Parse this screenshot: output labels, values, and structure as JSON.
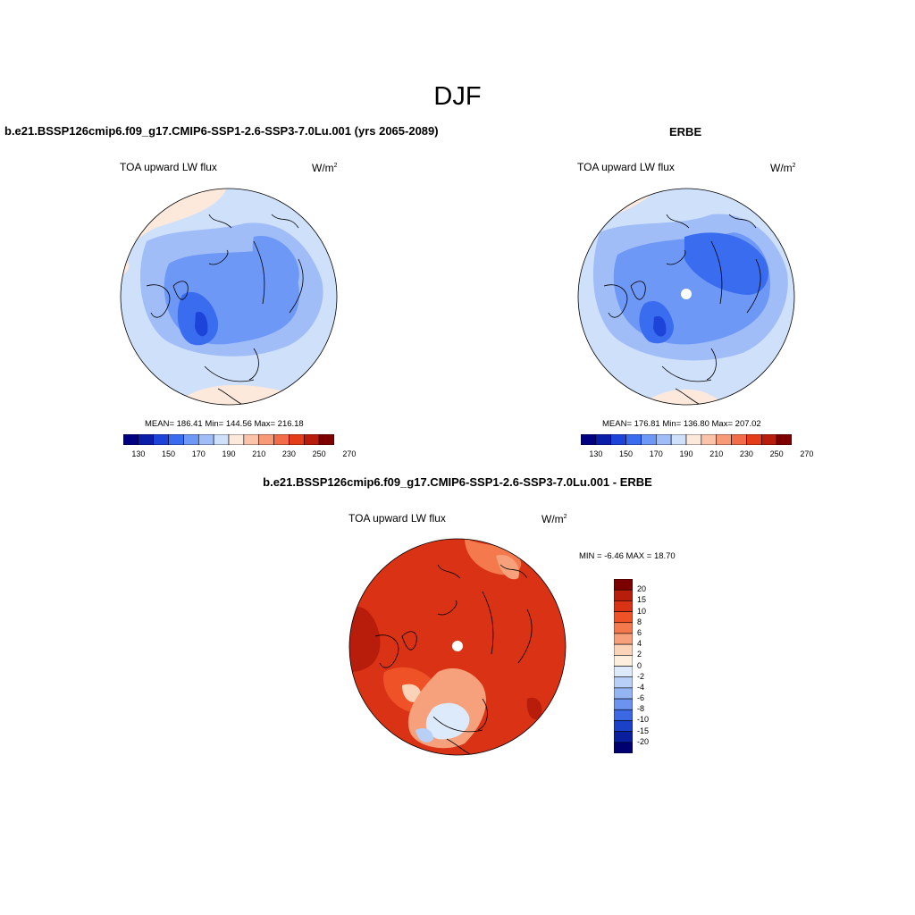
{
  "header": {
    "title": "DJF"
  },
  "panel_left": {
    "title": "b.e21.BSSP126cmip6.f09_g17.CMIP6-SSP1-2.6-SSP3-7.0Lu.001 (yrs 2065-2089)",
    "variable": "TOA upward LW flux",
    "units": "W/m",
    "units_sup": "2",
    "stats": "MEAN= 186.41  Min= 144.56  Max= 216.18",
    "colorbar_ticks": [
      "130",
      "150",
      "170",
      "190",
      "210",
      "230",
      "250",
      "270"
    ]
  },
  "panel_right": {
    "title": "ERBE",
    "variable": "TOA upward LW flux",
    "units": "W/m",
    "units_sup": "2",
    "stats": "MEAN= 176.81  Min= 136.80  Max= 207.02",
    "colorbar_ticks": [
      "130",
      "150",
      "170",
      "190",
      "210",
      "230",
      "250",
      "270"
    ]
  },
  "panel_diff": {
    "title": "b.e21.BSSP126cmip6.f09_g17.CMIP6-SSP1-2.6-SSP3-7.0Lu.001 - ERBE",
    "variable": "TOA upward LW flux",
    "units": "W/m",
    "units_sup": "2",
    "stats": "MIN =  -6.46 MAX =  18.70",
    "colorbar_ticks": [
      "20",
      "15",
      "10",
      "8",
      "6",
      "4",
      "2",
      "0",
      "-2",
      "-4",
      "-6",
      "-8",
      "-10",
      "-15",
      "-20"
    ]
  },
  "colors": {
    "abs_scale": [
      "#000080",
      "#0a1fa8",
      "#1c44d8",
      "#3a6cf0",
      "#6e98f6",
      "#a0bdf8",
      "#cfe0fb",
      "#fde9dc",
      "#fbc3aa",
      "#f79a78",
      "#f26c48",
      "#e33d1a",
      "#b81c0a",
      "#7d0000"
    ],
    "diff_scale": [
      "#7d0000",
      "#b81c0a",
      "#d93214",
      "#ee5226",
      "#f47a4e",
      "#f6a17c",
      "#fbd3b8",
      "#fdeede",
      "#ddeafc",
      "#b8cff8",
      "#94b4f4",
      "#6b93ef",
      "#3d68e4",
      "#1b41c8",
      "#0a1f9e",
      "#000070"
    ]
  }
}
